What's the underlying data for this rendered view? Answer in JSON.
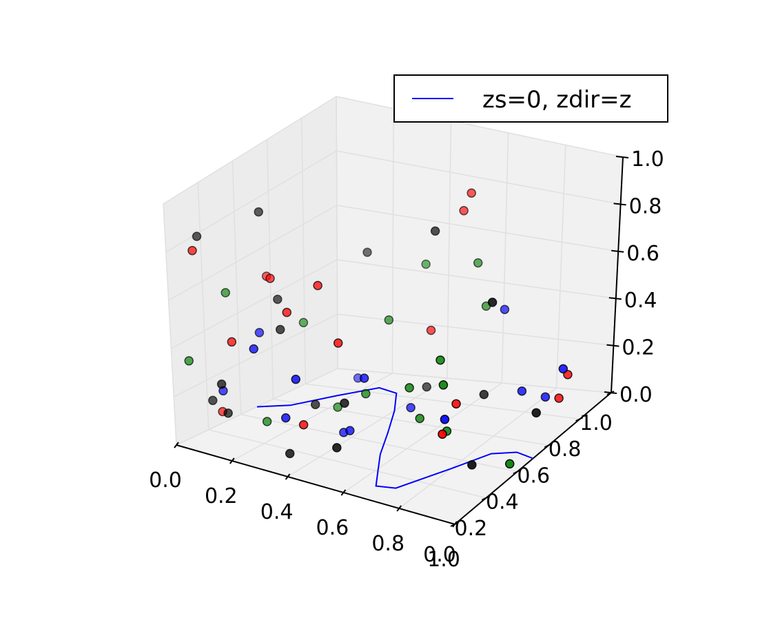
{
  "chart_data": {
    "type": "scatter",
    "projection": "3d",
    "title": "",
    "xlabel": "",
    "ylabel": "",
    "zlabel": "",
    "xlim": [
      0,
      1
    ],
    "ylim": [
      0,
      1
    ],
    "zlim": [
      0,
      1
    ],
    "grid": true,
    "legend_position": "top-right",
    "x_ticks": [
      "0.0",
      "0.2",
      "0.4",
      "0.6",
      "0.8",
      "1.0"
    ],
    "y_ticks": [
      "0.0",
      "0.2",
      "0.4",
      "0.6",
      "0.8",
      "1.0"
    ],
    "z_ticks": [
      "0.0",
      "0.2",
      "0.4",
      "0.6",
      "0.8",
      "1.0"
    ],
    "line": {
      "label": "zs=0, zdir=z",
      "color": "#0000ff",
      "points": [
        [
          0.0,
          0.5,
          0
        ],
        [
          0.08,
          0.57,
          0
        ],
        [
          0.16,
          0.73,
          0
        ],
        [
          0.24,
          0.85,
          0
        ],
        [
          0.32,
          0.82,
          0
        ],
        [
          0.4,
          0.67,
          0
        ],
        [
          0.48,
          0.49,
          0
        ],
        [
          0.55,
          0.32,
          0
        ],
        [
          0.61,
          0.2,
          0
        ],
        [
          0.66,
          0.1,
          0
        ],
        [
          0.72,
          0.12,
          0
        ],
        [
          0.8,
          0.33,
          0
        ],
        [
          0.86,
          0.48,
          0
        ],
        [
          0.93,
          0.52,
          0
        ],
        [
          1.0,
          0.5,
          0
        ]
      ]
    },
    "series": [
      {
        "color": "#ff0000",
        "points": [
          [
            0.09,
            0.01,
            0.84
          ],
          [
            0.95,
            0.75,
            0.11
          ],
          [
            0.09,
            0.14,
            0.12
          ],
          [
            0.34,
            0.14,
            0.62
          ],
          [
            0.09,
            0.43,
            0.56
          ],
          [
            0.38,
            0.26,
            0.69
          ],
          [
            0.83,
            0.32,
            0.3
          ],
          [
            0.21,
            0.02,
            0.5
          ],
          [
            0.49,
            0.19,
            0.52
          ],
          [
            0.48,
            0.76,
            0.3
          ],
          [
            0.88,
            0.15,
            0.28
          ],
          [
            0.45,
            0.03,
            0.23
          ],
          [
            0.51,
            0.9,
            0.72
          ],
          [
            0.94,
            0.82,
            0.17
          ],
          [
            0.19,
            0.29,
            0.64
          ],
          [
            0.53,
            0.91,
            0.79
          ]
        ]
      },
      {
        "color": "#0000ff",
        "points": [
          [
            0.15,
            0.28,
            0.41
          ],
          [
            0.65,
            0.92,
            0.34
          ],
          [
            0.5,
            0.6,
            0.06
          ],
          [
            0.27,
            0.05,
            0.48
          ],
          [
            0.43,
            0.03,
            0.42
          ],
          [
            0.85,
            0.84,
            0.05
          ],
          [
            0.81,
            0.76,
            0.11
          ],
          [
            0.5,
            0.32,
            0.31
          ],
          [
            0.39,
            0.37,
            0.03
          ],
          [
            0.12,
            0.1,
            0.23
          ],
          [
            0.98,
            0.72,
            0.26
          ],
          [
            0.18,
            0.82,
            0.04
          ],
          [
            0.38,
            0.04,
            0.23
          ],
          [
            0.46,
            0.29,
            0.09
          ],
          [
            0.86,
            0.2,
            0.31
          ]
        ]
      },
      {
        "color": "#008000",
        "points": [
          [
            0.07,
            0.22,
            0.57
          ],
          [
            0.74,
            0.38,
            0.43
          ],
          [
            0.77,
            0.36,
            0.14
          ],
          [
            0.14,
            0.56,
            0.34
          ],
          [
            0.81,
            0.28,
            0.4
          ],
          [
            0.62,
            0.39,
            0.27
          ],
          [
            0.42,
            0.46,
            0.16
          ],
          [
            0.51,
            0.99,
            0.47
          ],
          [
            0.27,
            0.54,
            0.04
          ],
          [
            0.22,
            0.19,
            0.1
          ],
          [
            0.33,
            0.98,
            0.44
          ],
          [
            0.56,
            0.96,
            0.32
          ],
          [
            0.05,
            0.02,
            0.36
          ],
          [
            0.62,
            0.45,
            0.11
          ],
          [
            0.37,
            0.69,
            0.35
          ],
          [
            0.99,
            0.37,
            0.05
          ]
        ]
      },
      {
        "color": "#000000",
        "points": [
          [
            0.43,
            0.82,
            0.04
          ],
          [
            0.05,
            0.15,
            0.15
          ],
          [
            0.14,
            0.41,
            0.49
          ],
          [
            0.87,
            0.34,
            0.03
          ],
          [
            0.22,
            0.29,
            0.44
          ],
          [
            0.11,
            0.14,
            0.12
          ],
          [
            0.18,
            0.88,
            0.5
          ],
          [
            0.48,
            0.23,
            0.24
          ],
          [
            0.53,
            0.09,
            0.13
          ],
          [
            0.5,
            0.75,
            0.71
          ],
          [
            0.96,
            0.59,
            0.14
          ],
          [
            0.1,
            0.38,
            0.84
          ],
          [
            0.69,
            0.73,
            0.09
          ],
          [
            0.37,
            0.07,
            0.06
          ],
          [
            0.14,
            0.06,
            0.28
          ],
          [
            0.85,
            0.51,
            0.64
          ],
          [
            0.29,
            0.37,
            0.12
          ],
          [
            0.0,
            0.18,
            0.79
          ]
        ]
      }
    ]
  }
}
